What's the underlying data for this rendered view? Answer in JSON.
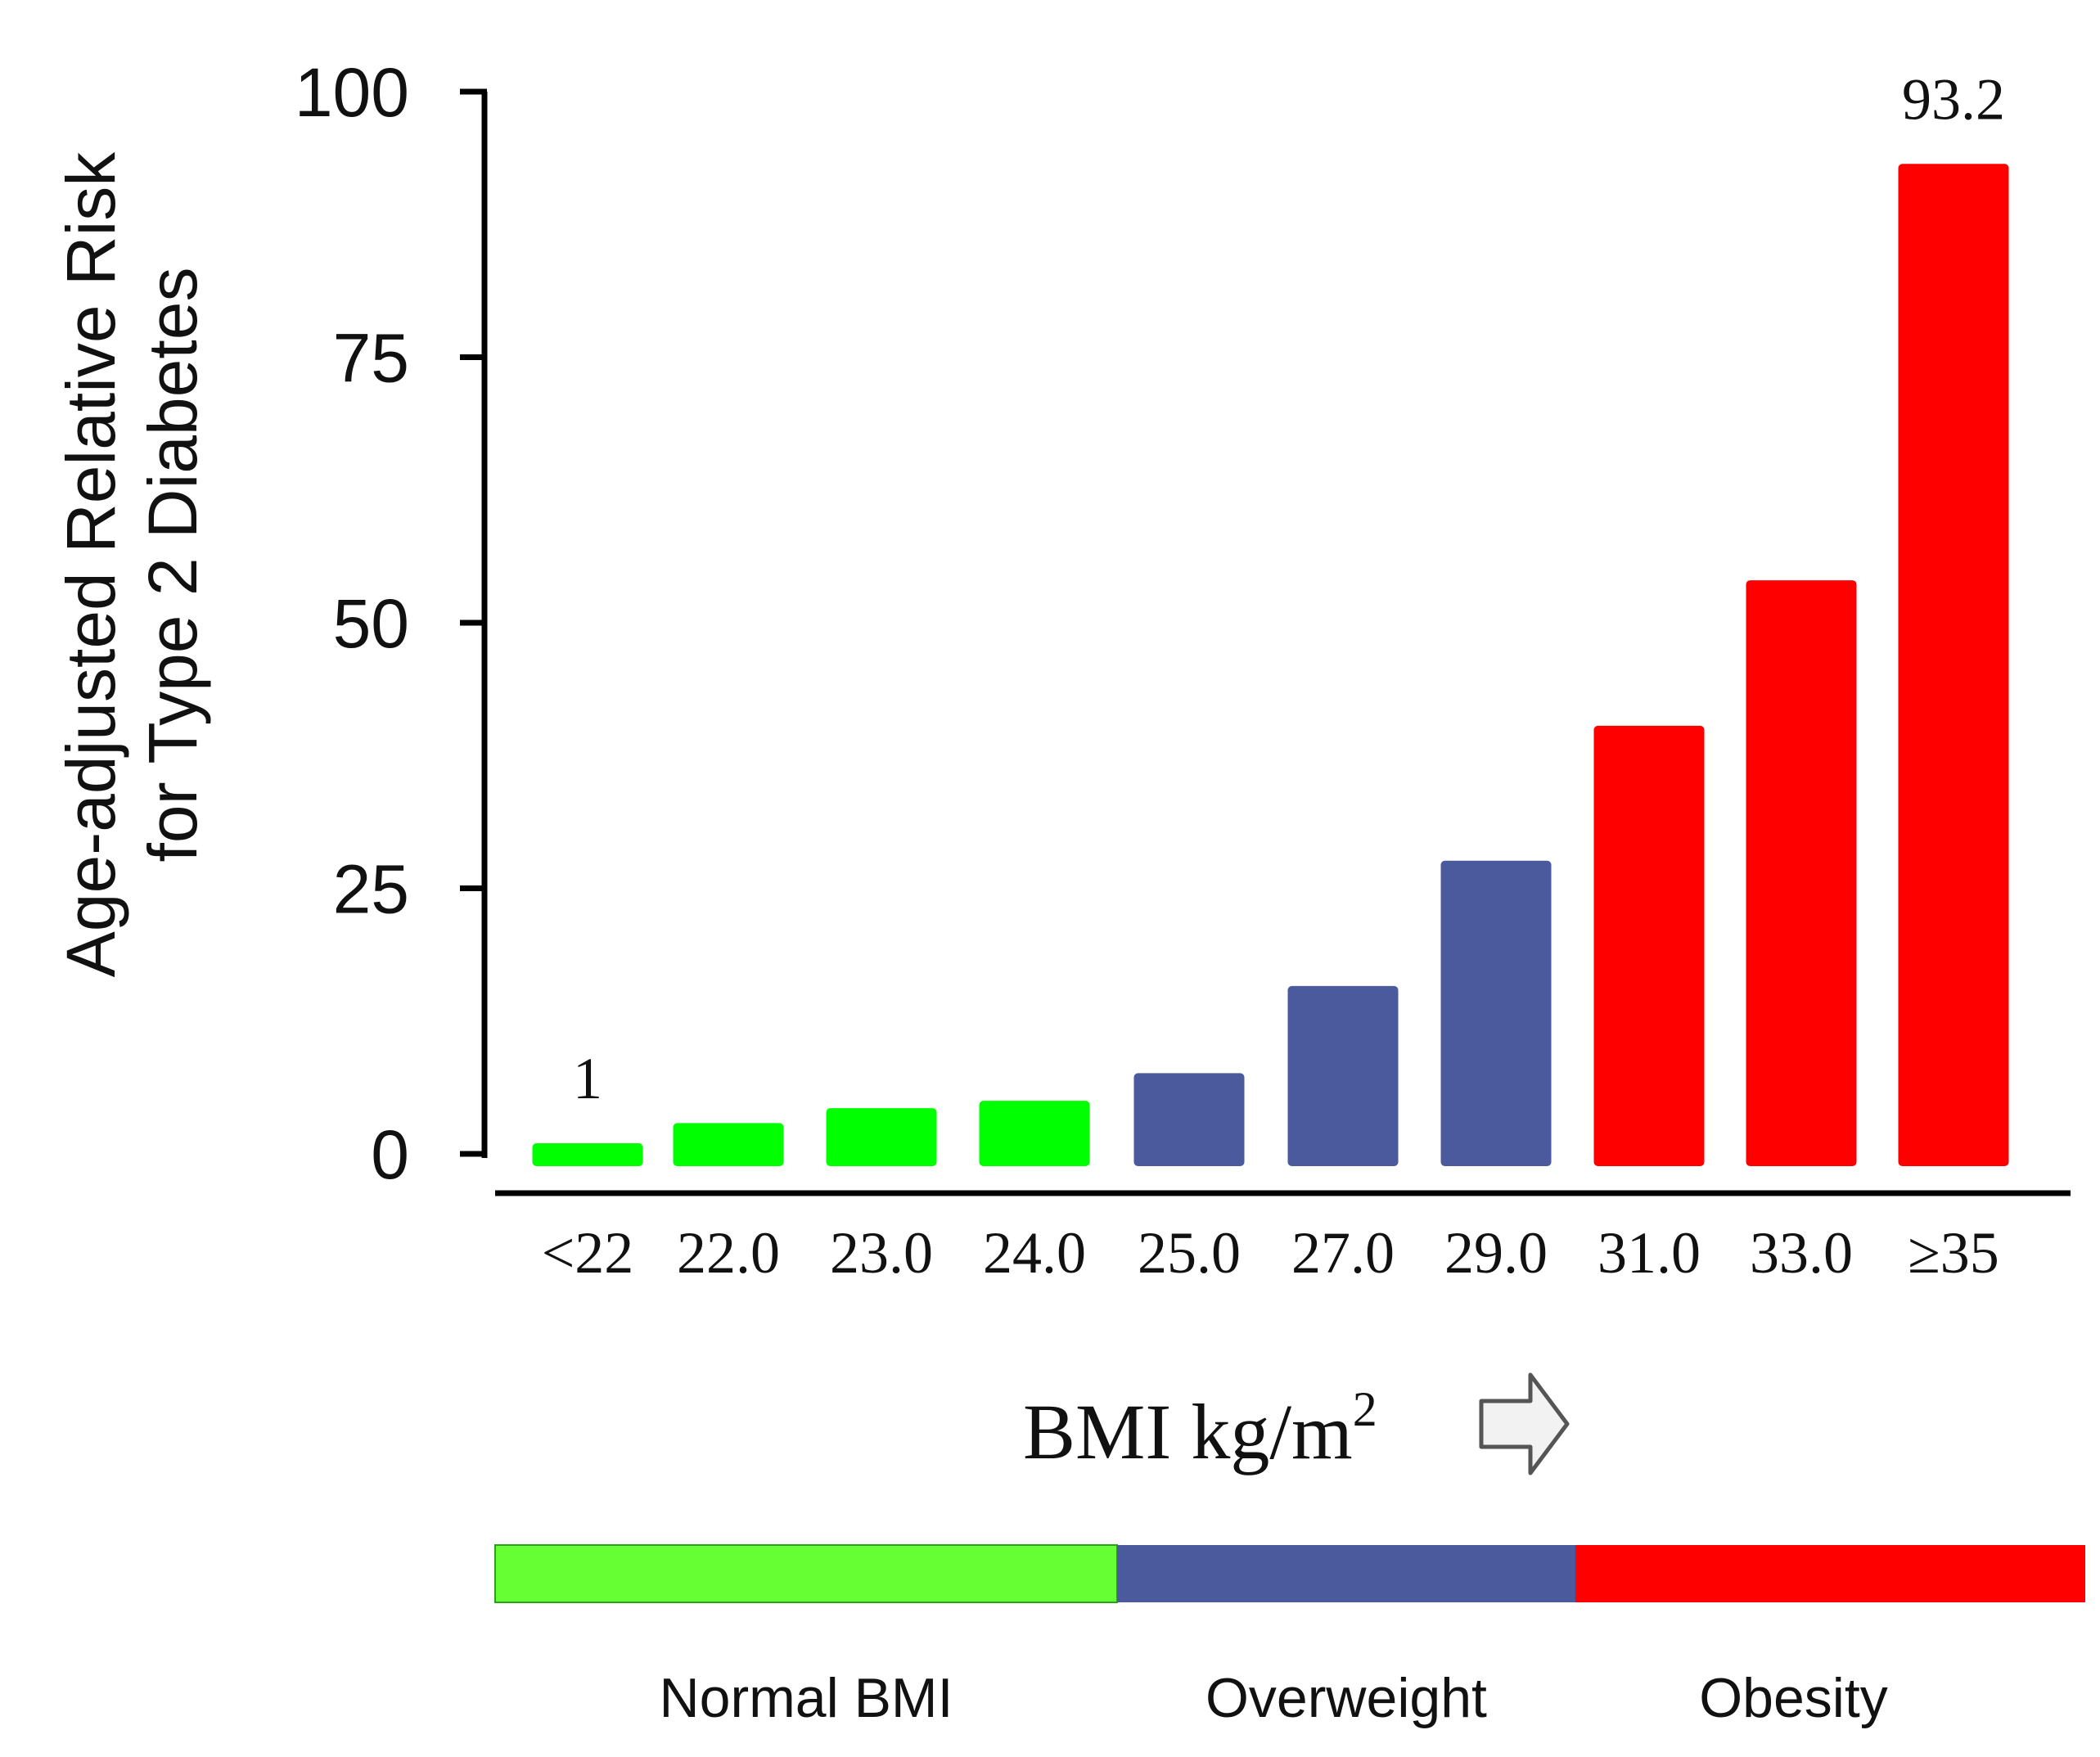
{
  "chart_data": {
    "type": "bar",
    "categories": [
      "<22",
      "22.0",
      "23.0",
      "24.0",
      "25.0",
      "27.0",
      "29.0",
      "31.0",
      "33.0",
      "≥35"
    ],
    "values": [
      1,
      2.9,
      4.3,
      5.0,
      7.6,
      15.8,
      27.6,
      40.3,
      54.0,
      93.2
    ],
    "data_labels": [
      {
        "category": "<22",
        "text": "1"
      },
      {
        "category": "≥35",
        "text": "93.2"
      }
    ],
    "bar_colors": [
      "#00ff00",
      "#00ff00",
      "#00ff00",
      "#00ff00",
      "#4a5a9c",
      "#4a5a9c",
      "#4a5a9c",
      "#ff0000",
      "#ff0000",
      "#ff0000"
    ],
    "ylabel_line1": "Age-adjusted Relative Risk",
    "ylabel_line2": "for Type 2 Diabetes",
    "xlabel": "BMI kg/m",
    "xlabel_superscript": "2",
    "ylim": [
      0,
      100
    ],
    "yticks": [
      0,
      25,
      50,
      75,
      100
    ],
    "ytick_labels": [
      "0",
      "25",
      "50",
      "75",
      "100"
    ],
    "grid": false,
    "legend": "none",
    "bands": [
      {
        "label": "Normal BMI",
        "color": "#66ff33",
        "from": "<22",
        "to": "24.0"
      },
      {
        "label": "Overweight",
        "color": "#4a5a9c",
        "from": "25.0",
        "to": "29.0"
      },
      {
        "label": "Obesity",
        "color": "#ff0000",
        "from": "31.0",
        "to": "≥35"
      }
    ],
    "arrow_icon": "right-arrow-icon"
  }
}
